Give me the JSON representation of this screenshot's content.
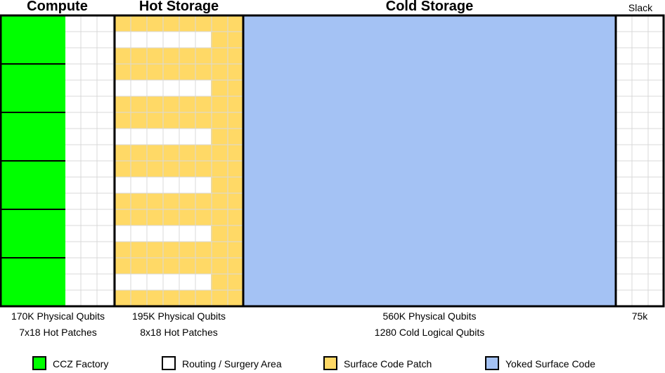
{
  "colors": {
    "ccz_factory": "#00ff00",
    "routing": "#ffffff",
    "surface_code_patch": "#ffd966",
    "yoked_surface_code": "#a4c2f4",
    "grid_line": "#d9d9d9",
    "outline": "#000000"
  },
  "regions": {
    "compute": {
      "title": "Compute",
      "physical_qubits": "170K Physical Qubits",
      "patches": "7x18 Hot Patches"
    },
    "hot_storage": {
      "title": "Hot Storage",
      "physical_qubits": "195K Physical Qubits",
      "patches": "8x18 Hot Patches"
    },
    "cold_storage": {
      "title": "Cold Storage",
      "physical_qubits": "560K Physical Qubits",
      "patches": "1280 Cold Logical Qubits"
    },
    "slack": {
      "title": "Slack",
      "physical_qubits": "75k"
    }
  },
  "legend": [
    {
      "label": "CCZ Factory",
      "color_key": "ccz_factory"
    },
    {
      "label": "Routing / Surgery Area",
      "color_key": "routing"
    },
    {
      "label": "Surface Code Patch",
      "color_key": "surface_code_patch"
    },
    {
      "label": "Yoked Surface Code",
      "color_key": "yoked_surface_code"
    }
  ]
}
